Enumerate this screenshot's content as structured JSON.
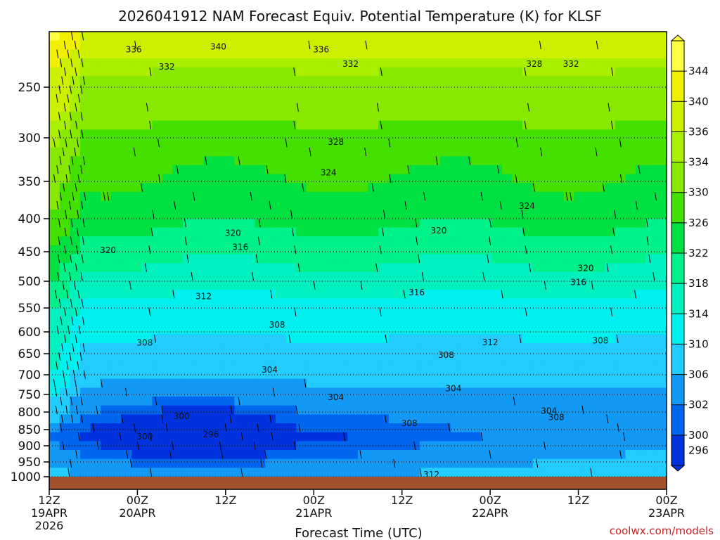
{
  "chart_data": {
    "type": "heatmap",
    "title": "2026041912 NAM Forecast Equiv. Potential Temperature (K) for KLSF",
    "xlabel": "Forecast Time (UTC)",
    "ylabel": "",
    "credit": "coolwx.com/models",
    "x_ticks": [
      {
        "hours": 0,
        "line1": "12Z",
        "line2": "19APR",
        "line3": "2026"
      },
      {
        "hours": 12,
        "line1": "00Z",
        "line2": "20APR",
        "line3": ""
      },
      {
        "hours": 24,
        "line1": "12Z",
        "line2": "",
        "line3": ""
      },
      {
        "hours": 36,
        "line1": "00Z",
        "line2": "21APR",
        "line3": ""
      },
      {
        "hours": 48,
        "line1": "12Z",
        "line2": "",
        "line3": ""
      },
      {
        "hours": 60,
        "line1": "00Z",
        "line2": "22APR",
        "line3": ""
      },
      {
        "hours": 72,
        "line1": "12Z",
        "line2": "",
        "line3": ""
      },
      {
        "hours": 84,
        "line1": "00Z",
        "line2": "23APR",
        "line3": ""
      }
    ],
    "xlim_hours": [
      0,
      84
    ],
    "y_ticks": [
      250,
      300,
      350,
      400,
      450,
      500,
      550,
      600,
      650,
      700,
      750,
      800,
      850,
      900,
      950,
      1000
    ],
    "ylim": [
      1000,
      200
    ],
    "colorbar": {
      "levels": [
        296,
        300,
        302,
        306,
        310,
        314,
        318,
        322,
        326,
        330,
        334,
        336,
        340,
        344
      ],
      "colors": [
        "#0033dd",
        "#0066ee",
        "#1199f5",
        "#22ccff",
        "#00f0f0",
        "#00f0c0",
        "#00f08a",
        "#00e040",
        "#44e000",
        "#88e800",
        "#aaee00",
        "#ccf000",
        "#f0f000",
        "#ffff44"
      ]
    },
    "contour_labels": [
      {
        "hours": 11.5,
        "p": 213,
        "text": "336"
      },
      {
        "hours": 23,
        "p": 210,
        "text": "340"
      },
      {
        "hours": 37,
        "p": 213,
        "text": "336"
      },
      {
        "hours": 16,
        "p": 230,
        "text": "332"
      },
      {
        "hours": 41,
        "p": 227,
        "text": "332"
      },
      {
        "hours": 66,
        "p": 227,
        "text": "328"
      },
      {
        "hours": 71,
        "p": 227,
        "text": "332"
      },
      {
        "hours": 39,
        "p": 305,
        "text": "328"
      },
      {
        "hours": 38,
        "p": 340,
        "text": "324"
      },
      {
        "hours": 65,
        "p": 383,
        "text": "324"
      },
      {
        "hours": 25,
        "p": 422,
        "text": "320"
      },
      {
        "hours": 53,
        "p": 418,
        "text": "320"
      },
      {
        "hours": 8,
        "p": 448,
        "text": "320"
      },
      {
        "hours": 26,
        "p": 443,
        "text": "316"
      },
      {
        "hours": 73,
        "p": 478,
        "text": "320"
      },
      {
        "hours": 72,
        "p": 502,
        "text": "316"
      },
      {
        "hours": 50,
        "p": 521,
        "text": "316"
      },
      {
        "hours": 21,
        "p": 528,
        "text": "312"
      },
      {
        "hours": 31,
        "p": 585,
        "text": "308"
      },
      {
        "hours": 13,
        "p": 625,
        "text": "308"
      },
      {
        "hours": 60,
        "p": 624,
        "text": "312"
      },
      {
        "hours": 54,
        "p": 653,
        "text": "308"
      },
      {
        "hours": 75,
        "p": 620,
        "text": "308"
      },
      {
        "hours": 30,
        "p": 688,
        "text": "304"
      },
      {
        "hours": 55,
        "p": 735,
        "text": "304"
      },
      {
        "hours": 39,
        "p": 758,
        "text": "304"
      },
      {
        "hours": 68,
        "p": 797,
        "text": "304"
      },
      {
        "hours": 69,
        "p": 815,
        "text": "308"
      },
      {
        "hours": 49,
        "p": 832,
        "text": "308"
      },
      {
        "hours": 18,
        "p": 812,
        "text": "300"
      },
      {
        "hours": 13,
        "p": 872,
        "text": "300"
      },
      {
        "hours": 22,
        "p": 865,
        "text": "296"
      },
      {
        "hours": 52,
        "p": 993,
        "text": "312"
      }
    ],
    "grid": true,
    "grid_style": "dotted horizontal",
    "legend": "colorbar right",
    "ground": "brown bar at 1000"
  }
}
